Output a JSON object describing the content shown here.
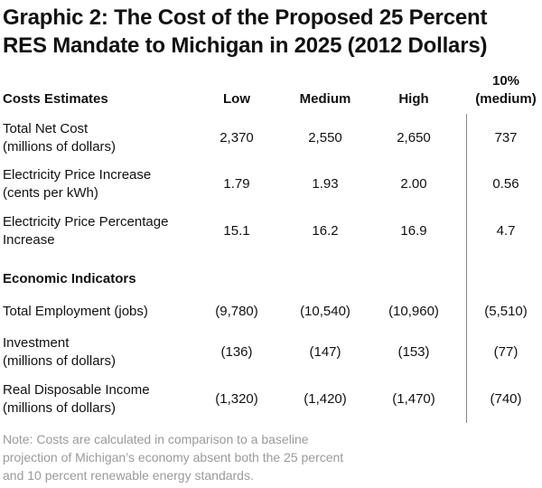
{
  "title": {
    "line1": "Graphic 2: The Cost of the Proposed 25 Percent",
    "line2": "RES Mandate to Michigan in 2025 (2012 Dollars)"
  },
  "table": {
    "row_header": "Costs Estimates",
    "columns": {
      "low": "Low",
      "medium": "Medium",
      "high": "High",
      "ten_line1": "10%",
      "ten_line2": "(medium)"
    },
    "cost_rows": [
      {
        "label1": "Total Net Cost",
        "label2": "(millions of dollars)",
        "low": "2,370",
        "medium": "2,550",
        "high": "2,650",
        "ten": "737"
      },
      {
        "label1": "Electricity Price Increase",
        "label2": "(cents per kWh)",
        "low": "1.79",
        "medium": "1.93",
        "high": "2.00",
        "ten": "0.56"
      },
      {
        "label1": "Electricity Price Percentage",
        "label2": "Increase",
        "low": "15.1",
        "medium": "16.2",
        "high": "16.9",
        "ten": "4.7"
      }
    ],
    "econ_header": "Economic Indicators",
    "econ_rows": [
      {
        "label1": "Total Employment (jobs)",
        "label2": "",
        "low": "(9,780)",
        "medium": "(10,540)",
        "high": "(10,960)",
        "ten": "(5,510)"
      },
      {
        "label1": "Investment",
        "label2": "(millions of dollars)",
        "low": "(136)",
        "medium": "(147)",
        "high": "(153)",
        "ten": "(77)"
      },
      {
        "label1": "Real Disposable Income",
        "label2": "(millions of dollars)",
        "low": "(1,320)",
        "medium": "(1,420)",
        "high": "(1,470)",
        "ten": "(740)"
      }
    ]
  },
  "note": {
    "line1": "Note: Costs are calculated in comparison to a baseline",
    "line2": "projection of Michigan’s economy absent both the 25 percent",
    "line3": "and 10 percent renewable energy standards."
  }
}
